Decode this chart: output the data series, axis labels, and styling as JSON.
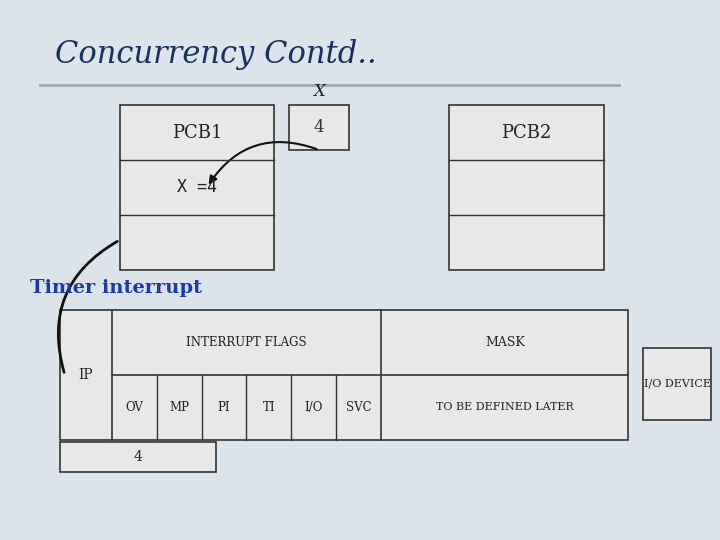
{
  "title": "Concurrency Contd..",
  "title_color": "#1a3060",
  "bg_color": "#dde3ea",
  "box_fill": "#e8e8e8",
  "box_edge": "#333333",
  "pcb1_label": "PCB1",
  "pcb2_label": "PCB2",
  "x_label": "X",
  "x_value": "4",
  "x_eq": "X =4",
  "timer_text": "Timer interrupt",
  "timer_color": "#1a3aaa",
  "interrupt_flags": "INTERRUPT FLAGS",
  "mask_label": "MASK",
  "ip_label": "IP",
  "flag_labels": [
    "OV",
    "MP",
    "PI",
    "TI",
    "I/O",
    "SVC"
  ],
  "mask_detail": "TO BE DEFINED LATER",
  "io_device": "I/O DEVICE",
  "ip_value": "4",
  "line_color": "#a0aabb"
}
